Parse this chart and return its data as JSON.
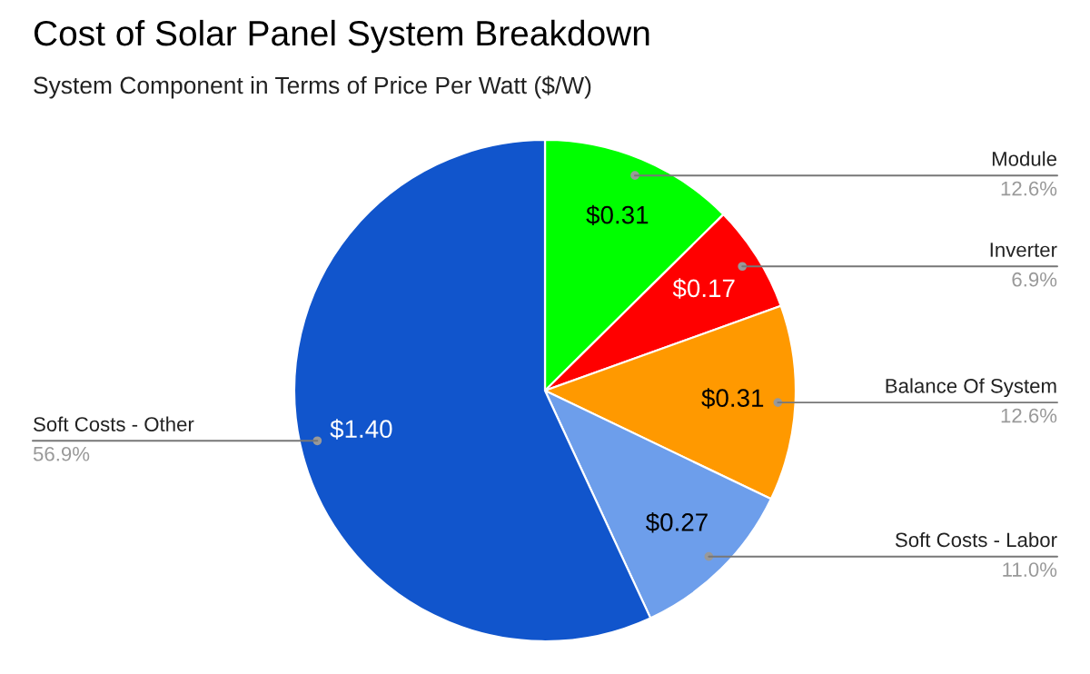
{
  "chart_data": {
    "type": "pie",
    "title": "Cost of Solar Panel System Breakdown",
    "subtitle": "System Component in Terms of Price Per Watt ($/W)",
    "categories": [
      "Module",
      "Inverter",
      "Balance Of System",
      "Soft Costs - Labor",
      "Soft Costs - Other"
    ],
    "values": [
      0.31,
      0.17,
      0.31,
      0.27,
      1.4
    ],
    "value_labels": [
      "$0.31",
      "$0.17",
      "$0.31",
      "$0.27",
      "$1.40"
    ],
    "colors": [
      "#00ff00",
      "#ff0000",
      "#ff9900",
      "#6d9eeb",
      "#1155cc"
    ],
    "annotations": [
      {
        "text": "12.6%",
        "x": "Module"
      },
      {
        "text": "6.9%",
        "x": "Inverter"
      },
      {
        "text": "12.6%",
        "x": "Balance Of System"
      },
      {
        "text": "11.0%",
        "x": "Soft Costs - Labor"
      },
      {
        "text": "56.9%",
        "x": "Soft Costs - Other"
      }
    ],
    "legend": false
  }
}
